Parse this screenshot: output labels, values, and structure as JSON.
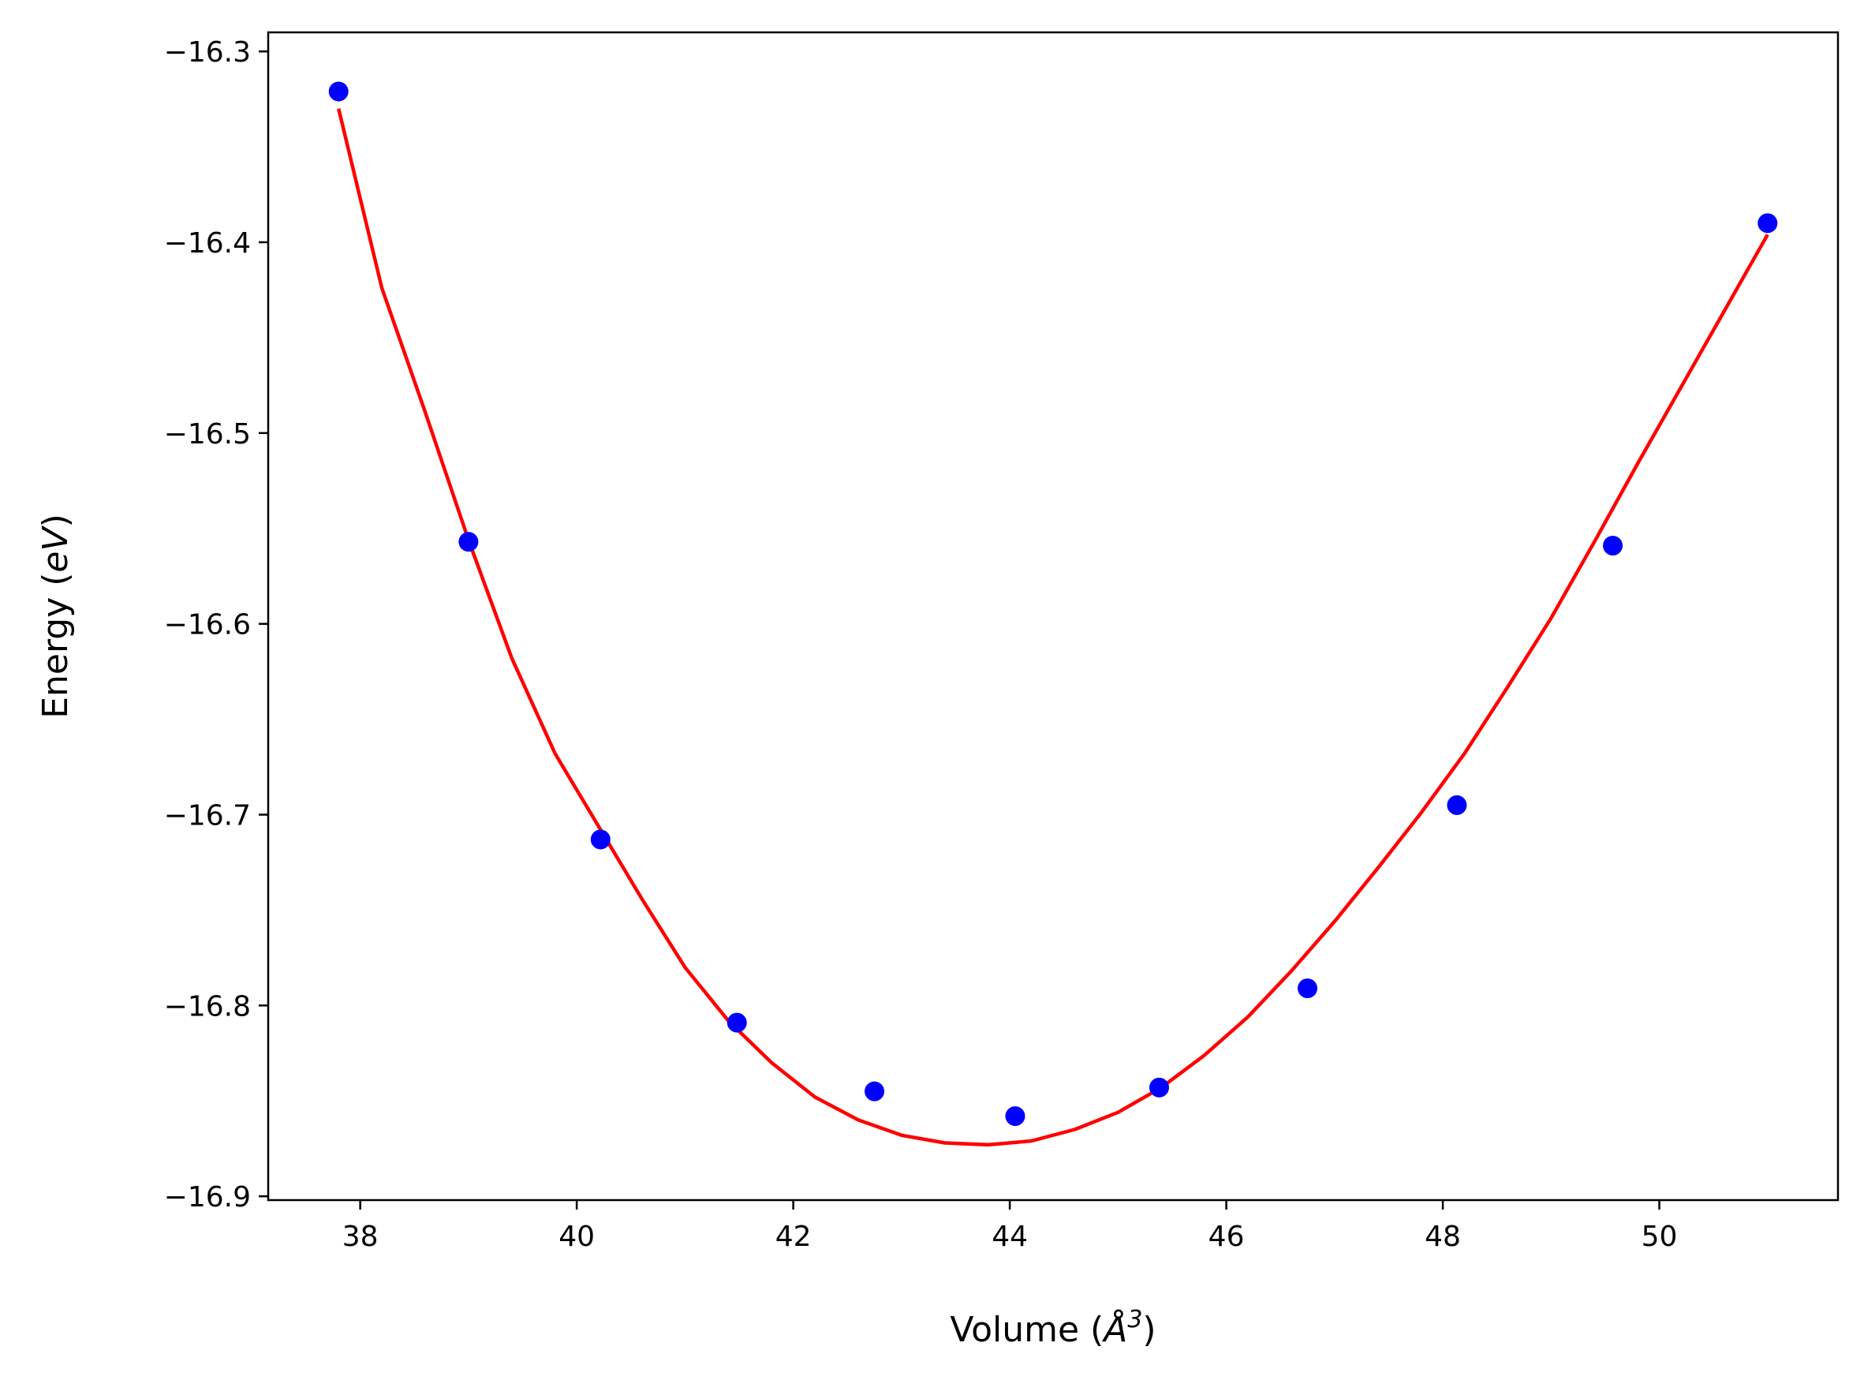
{
  "chart_data": {
    "type": "scatter",
    "title": "",
    "xlabel": "Volume (Å³)",
    "xlabel_parts": {
      "prefix": "Volume (",
      "symbol": "Å",
      "exponent": "3",
      "suffix": ")"
    },
    "ylabel": "Energy (eV)",
    "ylabel_parts": {
      "prefix": "Energy (",
      "unit": "eV",
      "suffix": ")"
    },
    "xlim": [
      37.15,
      51.65
    ],
    "ylim": [
      -16.902,
      -16.29
    ],
    "xticks": [
      38,
      40,
      42,
      44,
      46,
      48,
      50
    ],
    "xtick_labels": [
      "38",
      "40",
      "42",
      "44",
      "46",
      "48",
      "50"
    ],
    "yticks": [
      -16.9,
      -16.8,
      -16.7,
      -16.6,
      -16.5,
      -16.4,
      -16.3
    ],
    "ytick_labels": [
      "−16.9",
      "−16.8",
      "−16.7",
      "−16.6",
      "−16.5",
      "−16.4",
      "−16.3"
    ],
    "grid": false,
    "legend": "none",
    "series": [
      {
        "kind": "scatter",
        "color": "#0000ff",
        "x": [
          37.8,
          39.0,
          40.22,
          41.48,
          42.75,
          44.05,
          45.38,
          46.75,
          48.13,
          49.57,
          51.0
        ],
        "y": [
          -16.321,
          -16.557,
          -16.713,
          -16.809,
          -16.845,
          -16.858,
          -16.843,
          -16.791,
          -16.695,
          -16.559,
          -16.39
        ]
      },
      {
        "kind": "line",
        "color": "#ff0000",
        "x": [
          37.8,
          38.2,
          38.6,
          39.0,
          39.4,
          39.8,
          40.2,
          40.6,
          41.0,
          41.4,
          41.8,
          42.2,
          42.6,
          43.0,
          43.4,
          43.8,
          44.2,
          44.6,
          45.0,
          45.4,
          45.8,
          46.2,
          46.6,
          47.0,
          47.4,
          47.8,
          48.2,
          48.6,
          49.0,
          49.4,
          49.8,
          50.2,
          50.6,
          51.0
        ],
        "y": [
          -16.33,
          -16.424,
          -16.489,
          -16.556,
          -16.618,
          -16.668,
          -16.706,
          -16.744,
          -16.78,
          -16.808,
          -16.83,
          -16.848,
          -16.86,
          -16.868,
          -16.872,
          -16.873,
          -16.871,
          -16.865,
          -16.856,
          -16.843,
          -16.826,
          -16.806,
          -16.782,
          -16.756,
          -16.728,
          -16.699,
          -16.668,
          -16.633,
          -16.597,
          -16.557,
          -16.516,
          -16.476,
          -16.436,
          -16.396
        ]
      }
    ]
  }
}
